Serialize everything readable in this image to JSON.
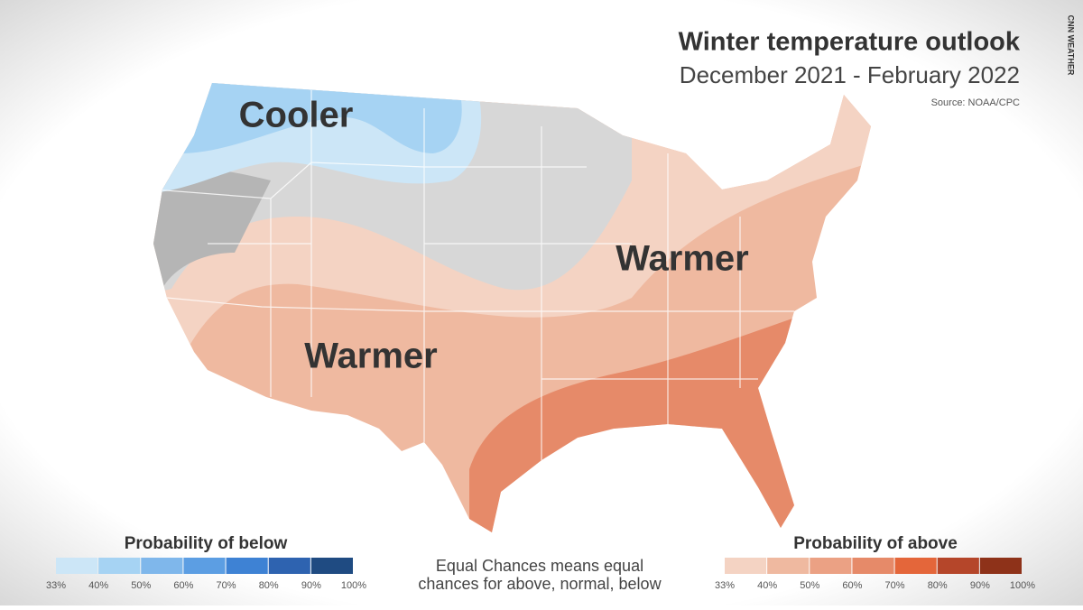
{
  "header": {
    "title": "Winter temperature outlook",
    "subtitle": "December 2021 - February 2022",
    "source": "Source: NOAA/CPC",
    "credit": "CNN WEATHER"
  },
  "regions": [
    {
      "label": "Cooler"
    },
    {
      "label": "Warmer"
    },
    {
      "label": "Warmer"
    }
  ],
  "legend_below": {
    "title": "Probability of below",
    "labels": [
      "33%",
      "40%",
      "50%",
      "60%",
      "70%",
      "80%",
      "90%",
      "100%"
    ],
    "colors": [
      "#cce6f7",
      "#a6d3f3",
      "#7fb7eb",
      "#5c9ee3",
      "#3e82d4",
      "#2e63b0",
      "#1f4b82"
    ]
  },
  "legend_above": {
    "title": "Probability of above",
    "labels": [
      "33%",
      "40%",
      "50%",
      "60%",
      "70%",
      "80%",
      "90%",
      "100%"
    ],
    "colors": [
      "#f4d3c3",
      "#efb9a0",
      "#eba184",
      "#e68a69",
      "#e4663a",
      "#b5462a",
      "#8e3219"
    ]
  },
  "note": {
    "line1": "Equal Chances means equal",
    "line2": "chances for above, normal, below"
  }
}
